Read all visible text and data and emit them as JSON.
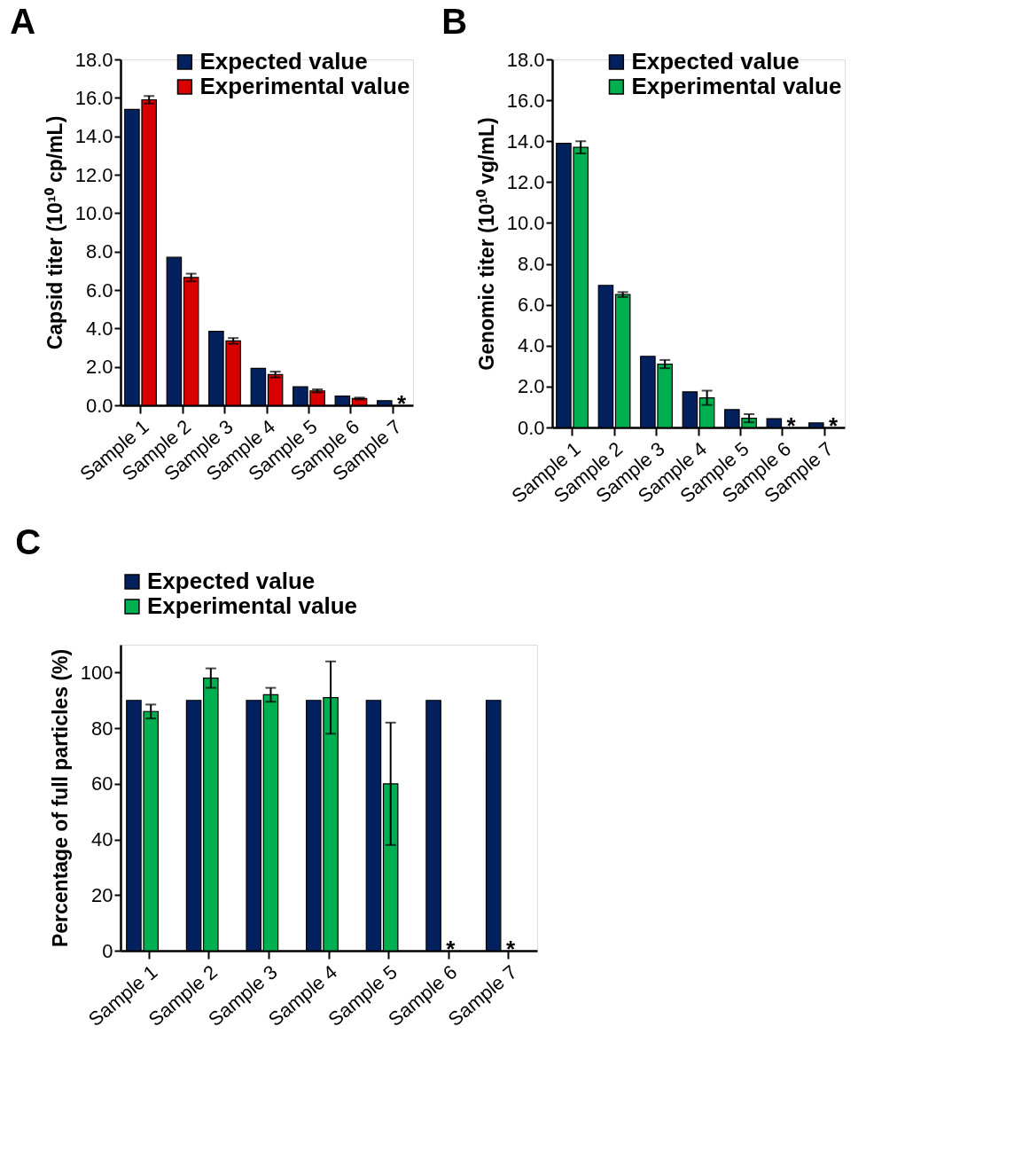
{
  "chart_data": [
    {
      "type": "bar",
      "title": "A",
      "ylabel": "Capsid titer (10¹⁰ cp/mL)",
      "categories": [
        "Sample 1",
        "Sample 2",
        "Sample 3",
        "Sample 4",
        "Sample 5",
        "Sample 6",
        "Sample 7"
      ],
      "series": [
        {
          "name": "Expected value",
          "color": "#03215e",
          "values": [
            15.4,
            7.7,
            3.85,
            1.92,
            0.96,
            0.48,
            0.24
          ]
        },
        {
          "name": "Experimental value",
          "color": "#d90000",
          "values": [
            15.9,
            6.65,
            3.35,
            1.6,
            0.75,
            0.35,
            null
          ],
          "errors": [
            0.2,
            0.2,
            0.15,
            0.15,
            0.08,
            0.05,
            null
          ]
        }
      ],
      "ylim": [
        0,
        18
      ],
      "yticks": [
        {
          "value": 0,
          "label": "0.0"
        },
        {
          "value": 2,
          "label": "2.0"
        },
        {
          "value": 4,
          "label": "4.0"
        },
        {
          "value": 6,
          "label": "6.0"
        },
        {
          "value": 8,
          "label": "8.0"
        },
        {
          "value": 10,
          "label": "10.0"
        },
        {
          "value": 12,
          "label": "12.0"
        },
        {
          "value": 14,
          "label": "14.0"
        },
        {
          "value": 16,
          "label": "16.0"
        },
        {
          "value": 18,
          "label": "18.0"
        }
      ],
      "annotations": [
        "*"
      ],
      "legend": "top right",
      "grid": false
    },
    {
      "type": "bar",
      "title": "B",
      "ylabel": "Genomic titer (10¹⁰ vg/mL)",
      "categories": [
        "Sample 1",
        "Sample 2",
        "Sample 3",
        "Sample 4",
        "Sample 5",
        "Sample 6",
        "Sample 7"
      ],
      "series": [
        {
          "name": "Expected value",
          "color": "#03215e",
          "values": [
            13.9,
            6.95,
            3.48,
            1.74,
            0.87,
            0.43,
            0.22
          ]
        },
        {
          "name": "Experimental value",
          "color": "#00b050",
          "values": [
            13.7,
            6.5,
            3.1,
            1.45,
            0.45,
            null,
            null
          ],
          "errors": [
            0.3,
            0.12,
            0.2,
            0.35,
            0.2,
            null,
            null
          ]
        }
      ],
      "ylim": [
        0,
        18
      ],
      "yticks": [
        {
          "value": 0,
          "label": "0.0"
        },
        {
          "value": 2,
          "label": "2.0"
        },
        {
          "value": 4,
          "label": "4.0"
        },
        {
          "value": 6,
          "label": "6.0"
        },
        {
          "value": 8,
          "label": "8.0"
        },
        {
          "value": 10,
          "label": "10.0"
        },
        {
          "value": 12,
          "label": "12.0"
        },
        {
          "value": 14,
          "label": "14.0"
        },
        {
          "value": 16,
          "label": "16.0"
        },
        {
          "value": 18,
          "label": "18.0"
        }
      ],
      "annotations": [
        "*",
        "*"
      ],
      "legend": "top right",
      "grid": false
    },
    {
      "type": "bar",
      "title": "C",
      "ylabel": "Percentage of full particles (%)",
      "categories": [
        "Sample 1",
        "Sample 2",
        "Sample 3",
        "Sample 4",
        "Sample 5",
        "Sample 6",
        "Sample 7"
      ],
      "series": [
        {
          "name": "Expected value",
          "color": "#03215e",
          "values": [
            90,
            90,
            90,
            90,
            90,
            90,
            90
          ]
        },
        {
          "name": "Experimental value",
          "color": "#00b050",
          "values": [
            86,
            98,
            92,
            91,
            60,
            null,
            null
          ],
          "errors": [
            2.5,
            3.5,
            2.5,
            13,
            22,
            null,
            null
          ]
        }
      ],
      "ylim": [
        0,
        110
      ],
      "yticks": [
        0,
        20,
        40,
        60,
        80,
        100
      ],
      "annotations": [
        "*",
        "*"
      ],
      "legend": "top",
      "grid": false
    }
  ]
}
